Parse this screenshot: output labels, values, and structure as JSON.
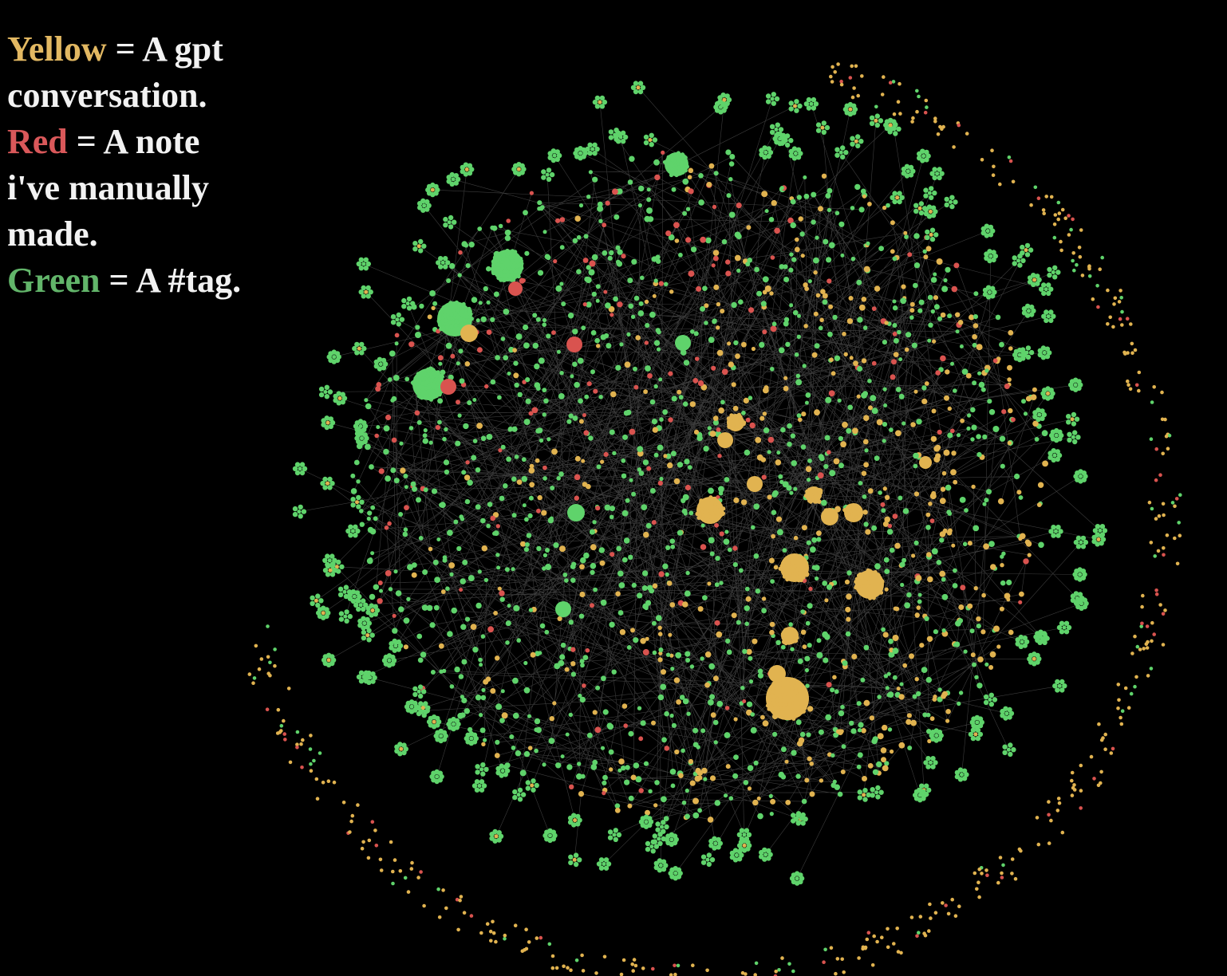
{
  "legend": [
    {
      "keyword": "Yellow",
      "lines": [
        "= A gpt",
        "conversation."
      ]
    },
    {
      "keyword": "Red",
      "lines": [
        "= A note",
        "i've manually",
        "made."
      ]
    },
    {
      "keyword": "Green",
      "lines": [
        "= A #tag."
      ]
    }
  ]
}
